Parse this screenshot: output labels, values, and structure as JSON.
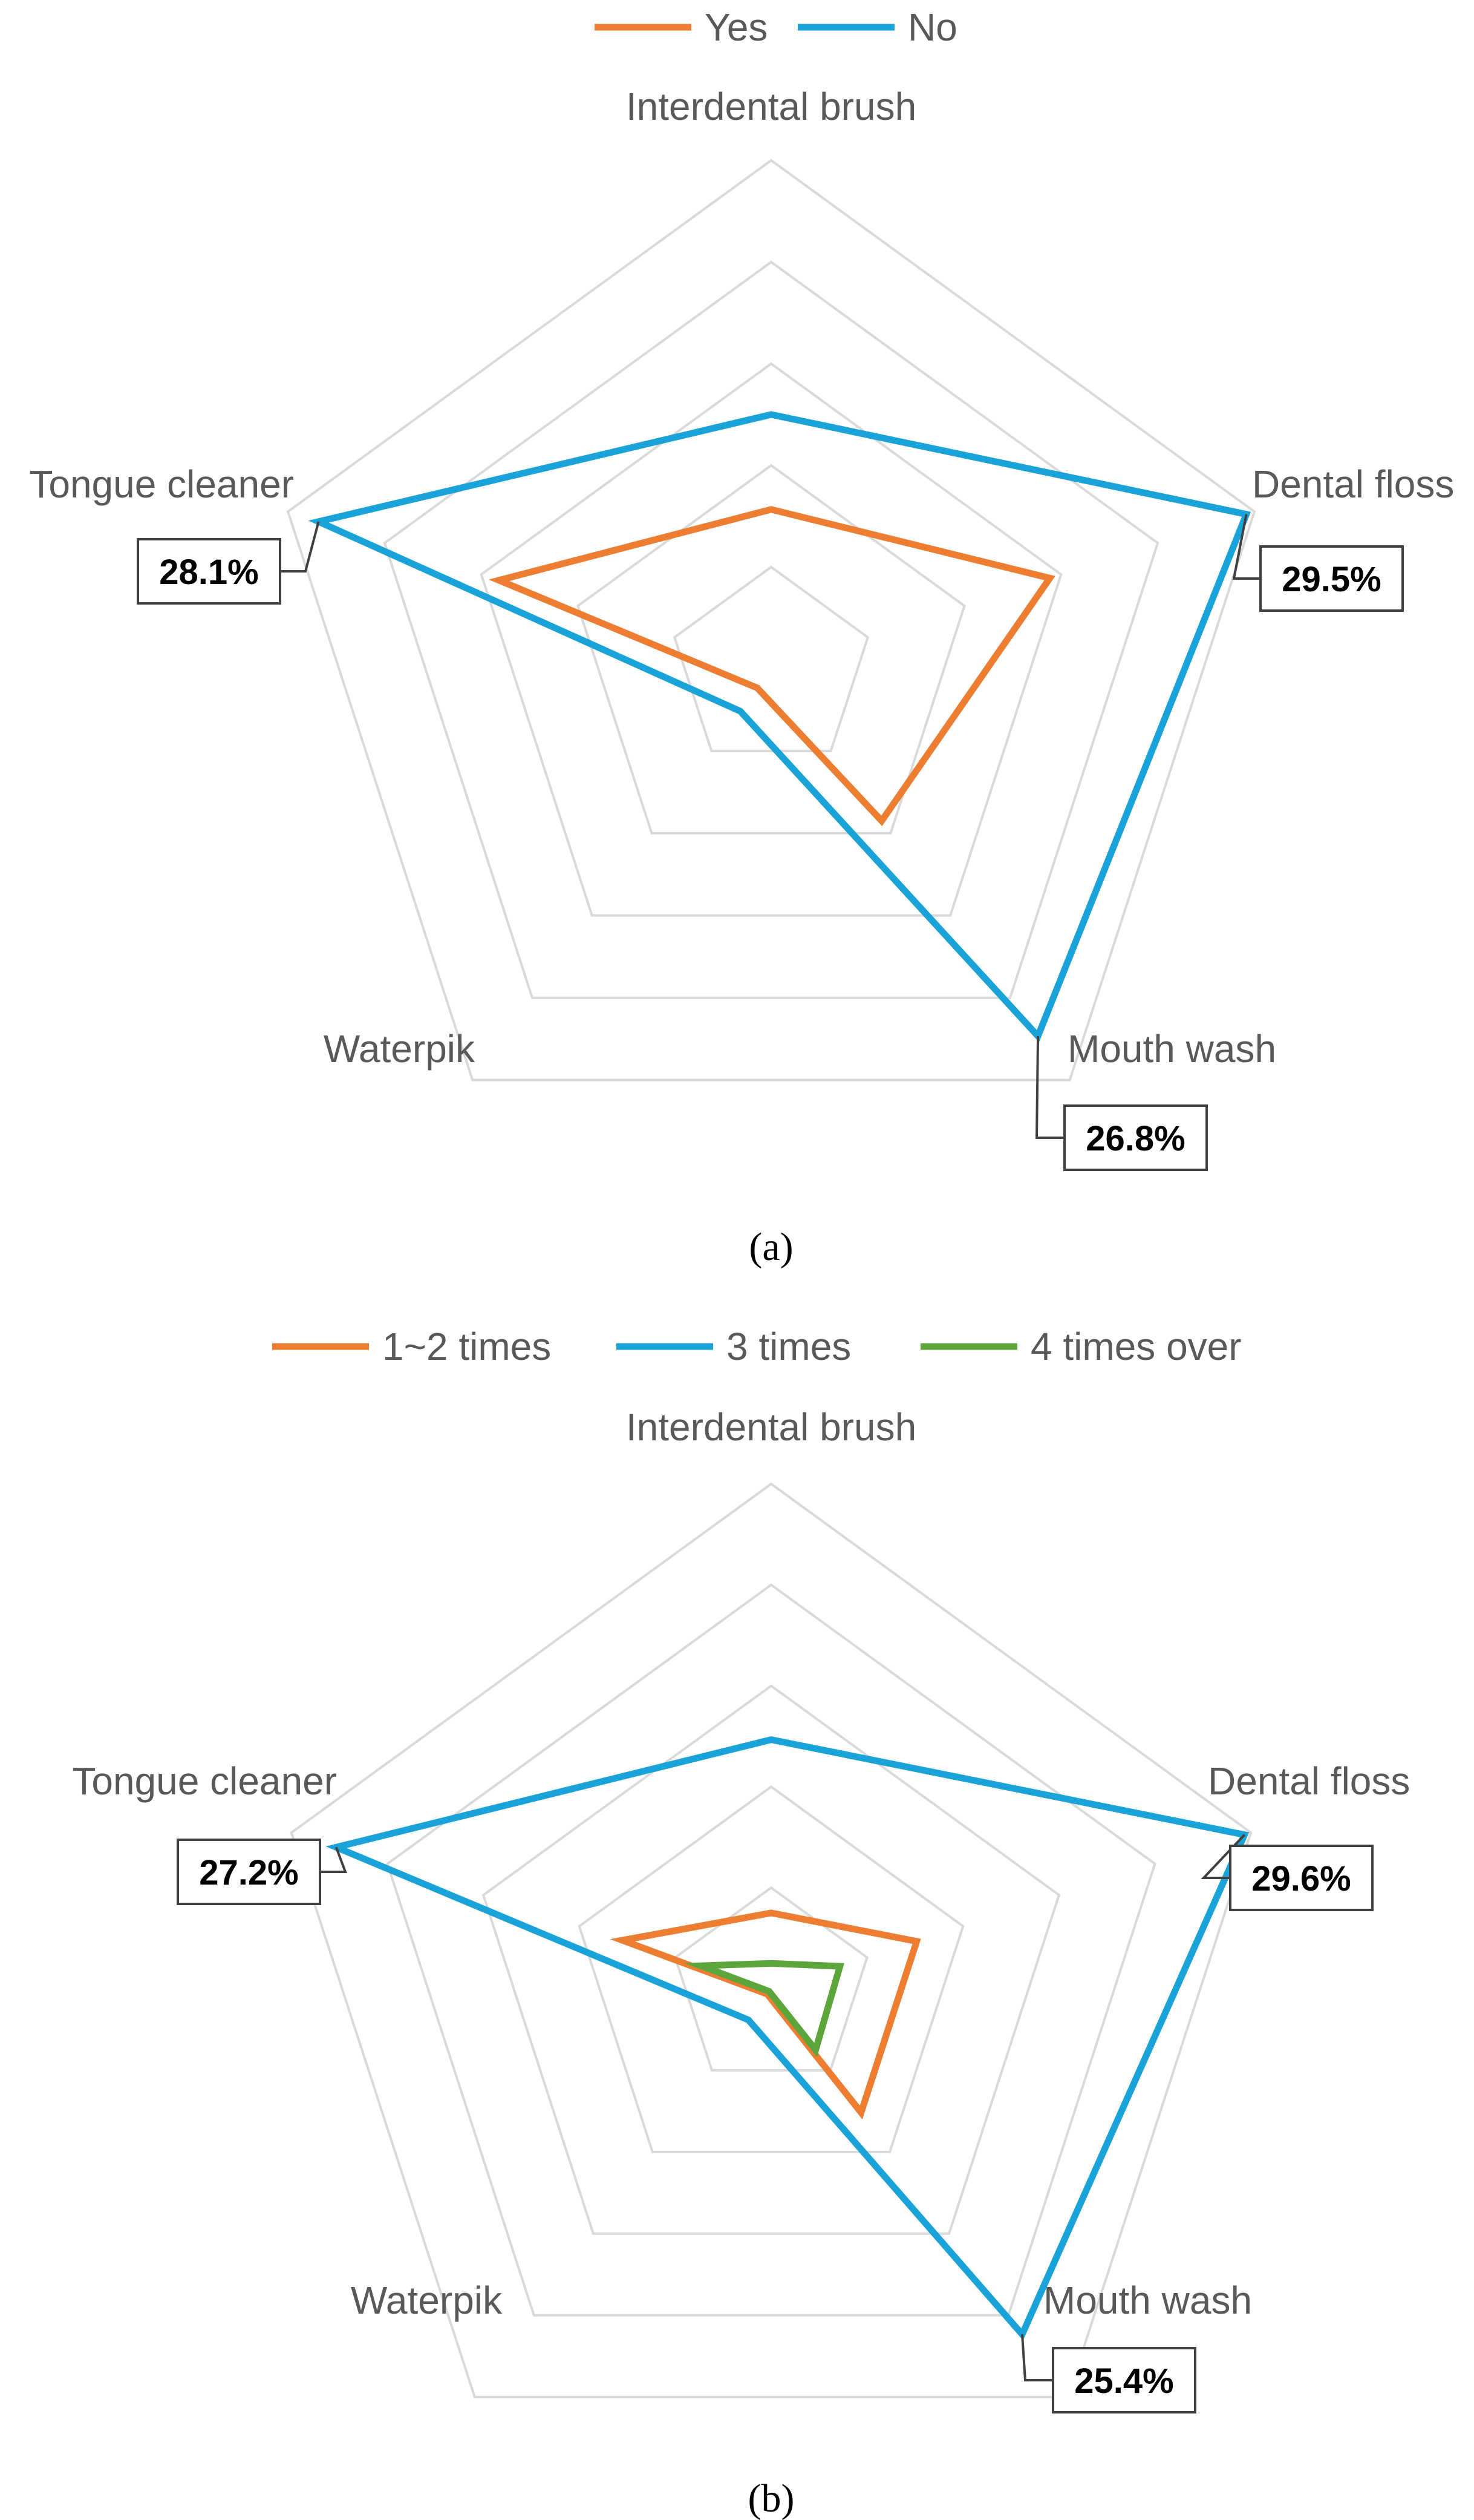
{
  "chart_data": [
    {
      "type": "radar",
      "caption": "(a)",
      "axes": [
        "Interdental brush",
        "Dental floss",
        "Mouth wash",
        "Waterpik",
        "Tongue cleaner"
      ],
      "rlim": [
        0,
        30
      ],
      "grid": true,
      "legend_position": "top",
      "series": [
        {
          "name": "Yes",
          "color": "#ED7D31",
          "values": [
            9.4,
            17.3,
            11.1,
            1.4,
            16.9
          ]
        },
        {
          "name": "No",
          "color": "#1AA3D9",
          "values": [
            15.0,
            29.5,
            26.8,
            3.1,
            28.1
          ]
        }
      ],
      "annotations": [
        {
          "axis": "Dental floss",
          "series": "No",
          "text": "29.5%"
        },
        {
          "axis": "Mouth wash",
          "series": "No",
          "text": "26.8%"
        },
        {
          "axis": "Tongue cleaner",
          "series": "No",
          "text": "28.1%"
        }
      ]
    },
    {
      "type": "radar",
      "caption": "(b)",
      "axes": [
        "Interdental brush",
        "Dental floss",
        "Mouth wash",
        "Waterpik",
        "Tongue cleaner"
      ],
      "rlim": [
        0,
        30
      ],
      "grid": true,
      "legend_position": "top",
      "series": [
        {
          "name": "1~2 times",
          "color": "#ED7D31",
          "values": [
            4.5,
            9.1,
            9.1,
            0.4,
            9.3
          ]
        },
        {
          "name": "3 times",
          "color": "#1AA3D9",
          "values": [
            14.8,
            29.6,
            25.4,
            2.3,
            27.2
          ]
        },
        {
          "name": "4 times over",
          "color": "#5BA53B",
          "values": [
            1.5,
            4.3,
            4.5,
            0.2,
            4.4
          ]
        }
      ],
      "annotations": [
        {
          "axis": "Dental floss",
          "series": "3 times",
          "text": "29.6%"
        },
        {
          "axis": "Mouth wash",
          "series": "3 times",
          "text": "25.4%"
        },
        {
          "axis": "Tongue cleaner",
          "series": "3 times",
          "text": "27.2%"
        }
      ]
    }
  ]
}
